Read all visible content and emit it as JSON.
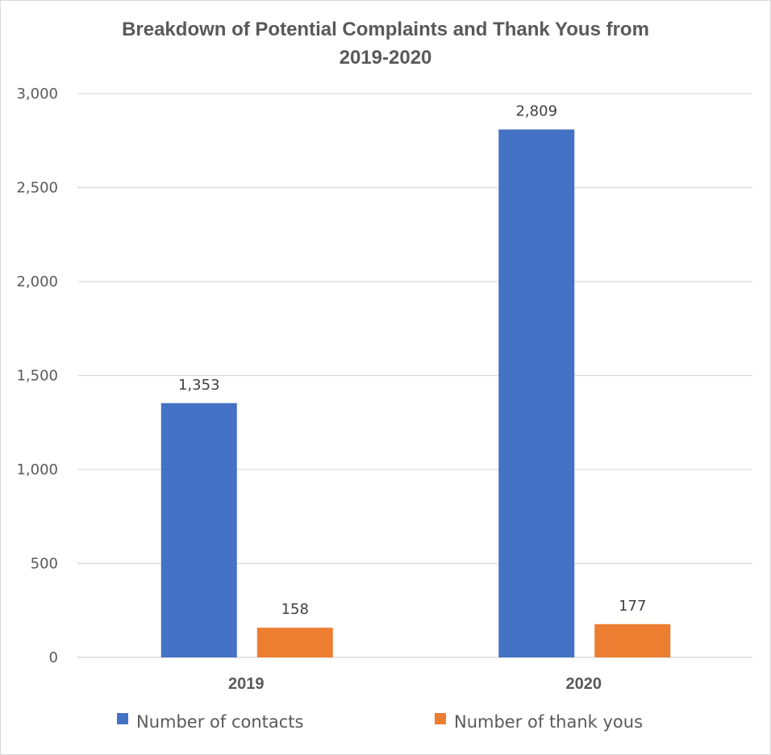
{
  "chart_data": {
    "type": "bar",
    "title": "Breakdown of Potential Complaints and Thank Yous from 2019-2020",
    "title_lines": [
      "Breakdown of Potential Complaints and Thank Yous from",
      "2019-2020"
    ],
    "categories": [
      "2019",
      "2020"
    ],
    "series": [
      {
        "name": "Number of contacts",
        "values": [
          1353,
          2809
        ],
        "labels": [
          "1,353",
          "2,809"
        ],
        "color": "#4472C4"
      },
      {
        "name": "Number of thank yous",
        "values": [
          158,
          177
        ],
        "labels": [
          "158",
          "177"
        ],
        "color": "#ED7D31"
      }
    ],
    "yticks": [
      0,
      500,
      1000,
      1500,
      2000,
      2500,
      3000
    ],
    "ytick_labels": [
      "0",
      "500",
      "1,000",
      "1,500",
      "2,000",
      "2,500",
      "3,000"
    ],
    "ylim": [
      0,
      3000
    ],
    "xlabel": "",
    "ylabel": "",
    "grid": true,
    "legend_position": "bottom"
  }
}
